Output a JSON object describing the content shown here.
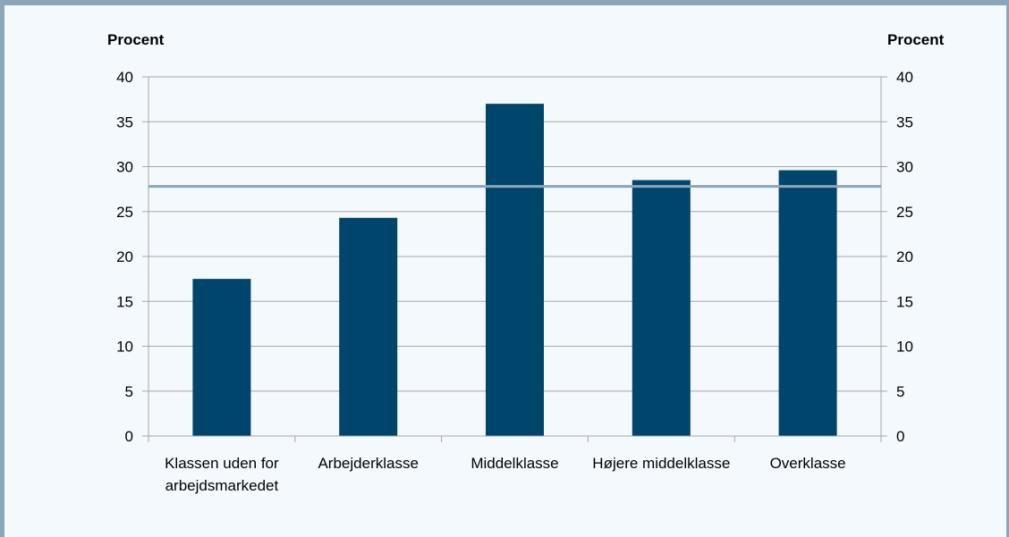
{
  "chart_data": {
    "type": "bar",
    "left_axis_label": "Procent",
    "right_axis_label": "Procent",
    "categories": [
      [
        "Klassen uden for",
        "arbejdsmarkedet"
      ],
      [
        "Arbejderklasse"
      ],
      [
        "Middelklasse"
      ],
      [
        "Højere middelklasse"
      ],
      [
        "Overklasse"
      ]
    ],
    "values": [
      17.5,
      24.3,
      37.0,
      28.5,
      29.6
    ],
    "reference_line": 27.8,
    "ylim": [
      0,
      40
    ],
    "yticks": [
      0,
      5,
      10,
      15,
      20,
      25,
      30,
      35,
      40
    ],
    "grid": true,
    "bar_color": "#00456c",
    "reference_line_color": "#8ba6b8",
    "grid_color": "#a6a6a6"
  }
}
